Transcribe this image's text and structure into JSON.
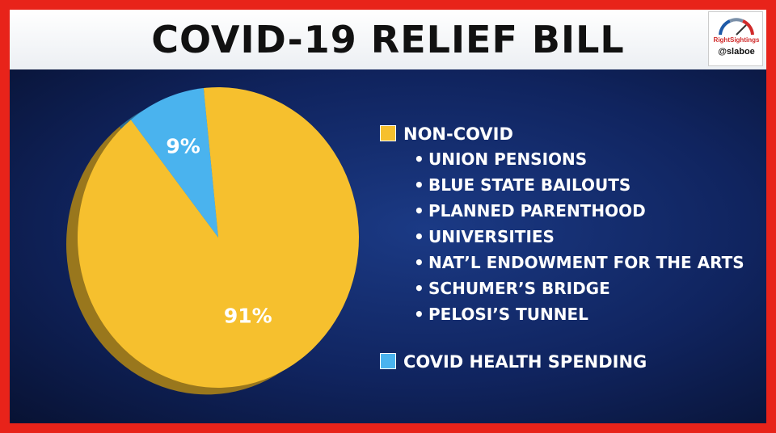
{
  "title": "COVID-19 RELIEF BILL",
  "watermark": {
    "brand": "RightSightings",
    "handle": "@slaboe"
  },
  "colors": {
    "frame": "#e8231a",
    "background": "#10245f",
    "non_covid": "#f6c02e",
    "covid": "#4ab3ee"
  },
  "chart_data": {
    "type": "pie",
    "title": "COVID-19 RELIEF BILL",
    "slices": [
      {
        "label": "NON-COVID",
        "value": 91,
        "display": "91%",
        "color": "#f6c02e"
      },
      {
        "label": "COVID HEALTH SPENDING",
        "value": 9,
        "display": "9%",
        "color": "#4ab3ee"
      }
    ],
    "legend_position": "right",
    "legend": [
      {
        "label": "NON-COVID",
        "color": "#f6c02e",
        "items": [
          "UNION PENSIONS",
          "BLUE STATE BAILOUTS",
          "PLANNED PARENTHOOD",
          "UNIVERSITIES",
          "NAT’L ENDOWMENT FOR THE ARTS",
          "SCHUMER’S BRIDGE",
          "PELOSI’S TUNNEL"
        ]
      },
      {
        "label": "COVID HEALTH SPENDING",
        "color": "#4ab3ee",
        "items": []
      }
    ]
  }
}
